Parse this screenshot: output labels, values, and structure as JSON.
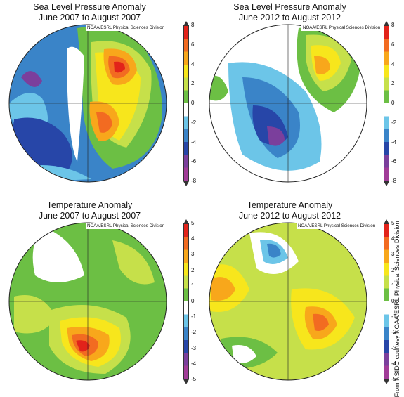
{
  "panels": [
    {
      "title": "Sea Level Pressure Anomaly",
      "period": "June 2007 to August 2007",
      "credit": "NOAA/ESRL Physical Sciences Division",
      "ticks": [
        "8",
        "6",
        "4",
        "2",
        "0",
        "-2",
        "-4",
        "-6",
        "-8"
      ]
    },
    {
      "title": "Sea Level Pressure Anomaly",
      "period": "June 2012 to August 2012",
      "credit": "NOAA/ESRL Physical Sciences Division",
      "ticks": [
        "8",
        "6",
        "4",
        "2",
        "0",
        "-2",
        "-4",
        "-6",
        "-8"
      ]
    },
    {
      "title": "Temperature Anomaly",
      "period": "June 2007 to August 2007",
      "credit": "NOAA/ESRL Physical Sciences Division",
      "ticks": [
        "5",
        "4",
        "3",
        "2",
        "1",
        "0",
        "-1",
        "-2",
        "-3",
        "-4",
        "-5"
      ]
    },
    {
      "title": "Temperature Anomaly",
      "period": "June 2012 to August 2012",
      "credit": "NOAA/ESRL Physical Sciences Division",
      "ticks": [
        "5",
        "4",
        "3",
        "2",
        "1",
        "0",
        "-1",
        "-2",
        "-3",
        "-4",
        "-5"
      ]
    }
  ],
  "colorbar_colors": [
    "#e2231a",
    "#f26b21",
    "#f8a71b",
    "#f7e61c",
    "#c6e04a",
    "#6cbf44",
    "#ffffff",
    "#6cc5e8",
    "#3a84c8",
    "#2746a8",
    "#7b3f9c",
    "#a13c98"
  ],
  "source_credit": "From NSIDC courtesy NOAA/ESRL Physical Sciences Division"
}
